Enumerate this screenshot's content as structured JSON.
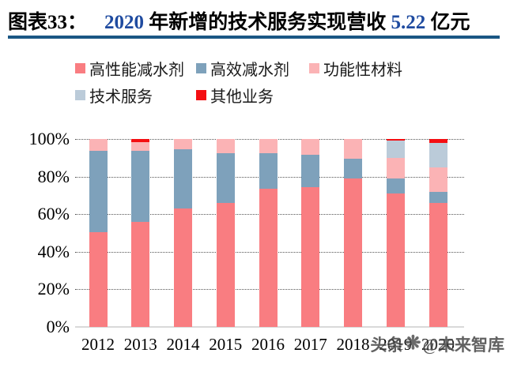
{
  "header": {
    "prefix": "图表33：",
    "title_segments": [
      {
        "text": "2020",
        "accent": true
      },
      {
        "text": " 年新增的技术服务实现营收 ",
        "accent": false
      },
      {
        "text": "5.22",
        "accent": true
      },
      {
        "text": " 亿元",
        "accent": false
      }
    ],
    "accent_color": "#1F4BA0",
    "rule_color": "#1A5784"
  },
  "watermark": {
    "text_left": "头条",
    "logo": "starburst-icon",
    "logo_glyph": "❋",
    "text_right": "@未来智库"
  },
  "chart_data": {
    "type": "bar",
    "stacked": true,
    "units": "percent",
    "title": "图表33： 2020 年新增的技术服务实现营收 5.22 亿元",
    "categories": [
      "2012",
      "2013",
      "2014",
      "2015",
      "2016",
      "2017",
      "2018",
      "2019",
      "2020"
    ],
    "series": [
      {
        "name": "高性能减水剂",
        "color": "#F97D81",
        "values": [
          50.5,
          56,
          63,
          66,
          73.5,
          74.5,
          79,
          71,
          66
        ]
      },
      {
        "name": "高效减水剂",
        "color": "#7EA1BB",
        "values": [
          43,
          37.5,
          31.5,
          26.5,
          19,
          17,
          10.5,
          8,
          6
        ]
      },
      {
        "name": "功能性材料",
        "color": "#FBB3B5",
        "values": [
          6.5,
          5,
          5.5,
          7.5,
          7.5,
          8.5,
          10.5,
          11,
          13
        ]
      },
      {
        "name": "技术服务",
        "color": "#BBCBD9",
        "values": [
          0,
          0,
          0,
          0,
          0,
          0,
          0,
          9,
          13
        ]
      },
      {
        "name": "其他业务",
        "color": "#F40E12",
        "values": [
          0,
          1.5,
          0,
          0,
          0,
          0,
          0,
          1,
          2
        ]
      }
    ],
    "y_ticks": [
      {
        "label": "100%",
        "value": 100
      },
      {
        "label": "80%",
        "value": 80
      },
      {
        "label": "60%",
        "value": 60
      },
      {
        "label": "40%",
        "value": 40
      },
      {
        "label": "20%",
        "value": 20
      },
      {
        "label": "0%",
        "value": 0
      }
    ],
    "ylim": [
      0,
      100
    ],
    "xlabel": "",
    "ylabel": "",
    "grid": "horizontal-dotted",
    "legend_position": "top"
  }
}
